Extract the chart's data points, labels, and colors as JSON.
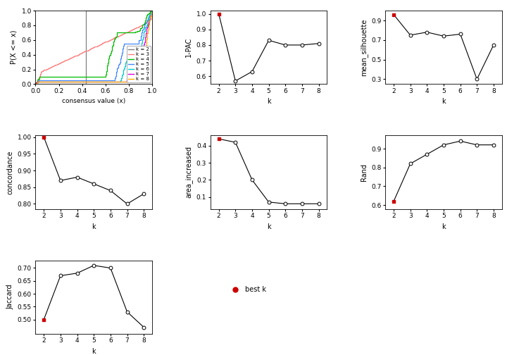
{
  "ecdf_colors": [
    "#808080",
    "#ff8080",
    "#00bb00",
    "#4488ff",
    "#00cccc",
    "#dd00dd",
    "#ffaa00"
  ],
  "ecdf_labels": [
    "k = 2",
    "k = 3",
    "k = 4",
    "k = 5",
    "k = 6",
    "k = 7",
    "k = 8"
  ],
  "k_values": [
    2,
    3,
    4,
    5,
    6,
    7,
    8
  ],
  "pac_1minus": [
    1.0,
    0.57,
    0.63,
    0.83,
    0.8,
    0.8,
    0.81
  ],
  "mean_sil": [
    0.96,
    0.75,
    0.78,
    0.74,
    0.76,
    0.3,
    0.65
  ],
  "concordance": [
    1.0,
    0.87,
    0.88,
    0.86,
    0.84,
    0.8,
    0.83
  ],
  "area_increased": [
    0.44,
    0.42,
    0.2,
    0.07,
    0.06,
    0.06,
    0.06
  ],
  "rand": [
    0.62,
    0.82,
    0.87,
    0.92,
    0.94,
    0.92,
    0.92
  ],
  "jaccard": [
    0.5,
    0.67,
    0.68,
    0.71,
    0.7,
    0.53,
    0.47
  ],
  "best_k_color": "#cc0000",
  "open_circle_color": "#ffffff",
  "line_color": "#000000",
  "bg_color": "#ffffff"
}
